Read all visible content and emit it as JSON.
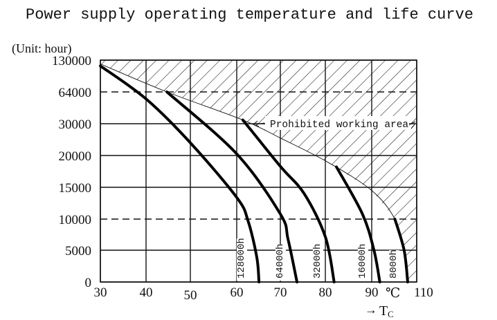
{
  "chart_data": {
    "type": "line",
    "title": "Power supply operating temperature and life curve",
    "ylabel": "(Unit: hour)",
    "xlabel_arrow": "→",
    "xlabel_main": "T",
    "xlabel_sub": "C",
    "x_unit": "℃",
    "x_ticks": [
      30,
      40,
      50,
      60,
      70,
      80,
      90,
      110
    ],
    "y_ticks": [
      0,
      5000,
      10000,
      15000,
      20000,
      30000,
      64000,
      130000
    ],
    "xlim": [
      30,
      110
    ],
    "ylim": [
      0,
      130000
    ],
    "dashed_y_lines": [
      64000,
      10000
    ],
    "grid": true,
    "region_label": "Prohibited working area",
    "prohibited_boundary": [
      [
        30,
        122000
      ],
      [
        44.7,
        64000
      ],
      [
        61.4,
        34000
      ],
      [
        70,
        25500
      ],
      [
        80.4,
        19000
      ],
      [
        90,
        14500
      ],
      [
        100.3,
        10000
      ],
      [
        104.4,
        5000
      ],
      [
        106,
        0
      ]
    ],
    "series": [
      {
        "name": "128000h",
        "points": [
          [
            30,
            118000
          ],
          [
            40,
            56500
          ],
          [
            50,
            24000
          ],
          [
            60,
            13400
          ],
          [
            62.6,
            9700
          ],
          [
            64.6,
            3900
          ],
          [
            65.1,
            0
          ]
        ]
      },
      {
        "name": "64000h",
        "points": [
          [
            44.7,
            64000
          ],
          [
            60,
            20500
          ],
          [
            70,
            10800
          ],
          [
            71.7,
            6800
          ],
          [
            73.7,
            0
          ]
        ]
      },
      {
        "name": "32000h",
        "points": [
          [
            61.4,
            34000
          ],
          [
            70,
            18300
          ],
          [
            75.3,
            14000
          ],
          [
            80,
            7150
          ],
          [
            81.9,
            0
          ]
        ]
      },
      {
        "name": "16000h",
        "points": [
          [
            82.4,
            18200
          ],
          [
            88,
            10800
          ],
          [
            91,
            5000
          ],
          [
            93.6,
            0
          ]
        ]
      },
      {
        "name": "8000h",
        "points": [
          [
            100.3,
            10000
          ],
          [
            104.4,
            5000
          ],
          [
            106,
            0
          ]
        ]
      }
    ]
  }
}
